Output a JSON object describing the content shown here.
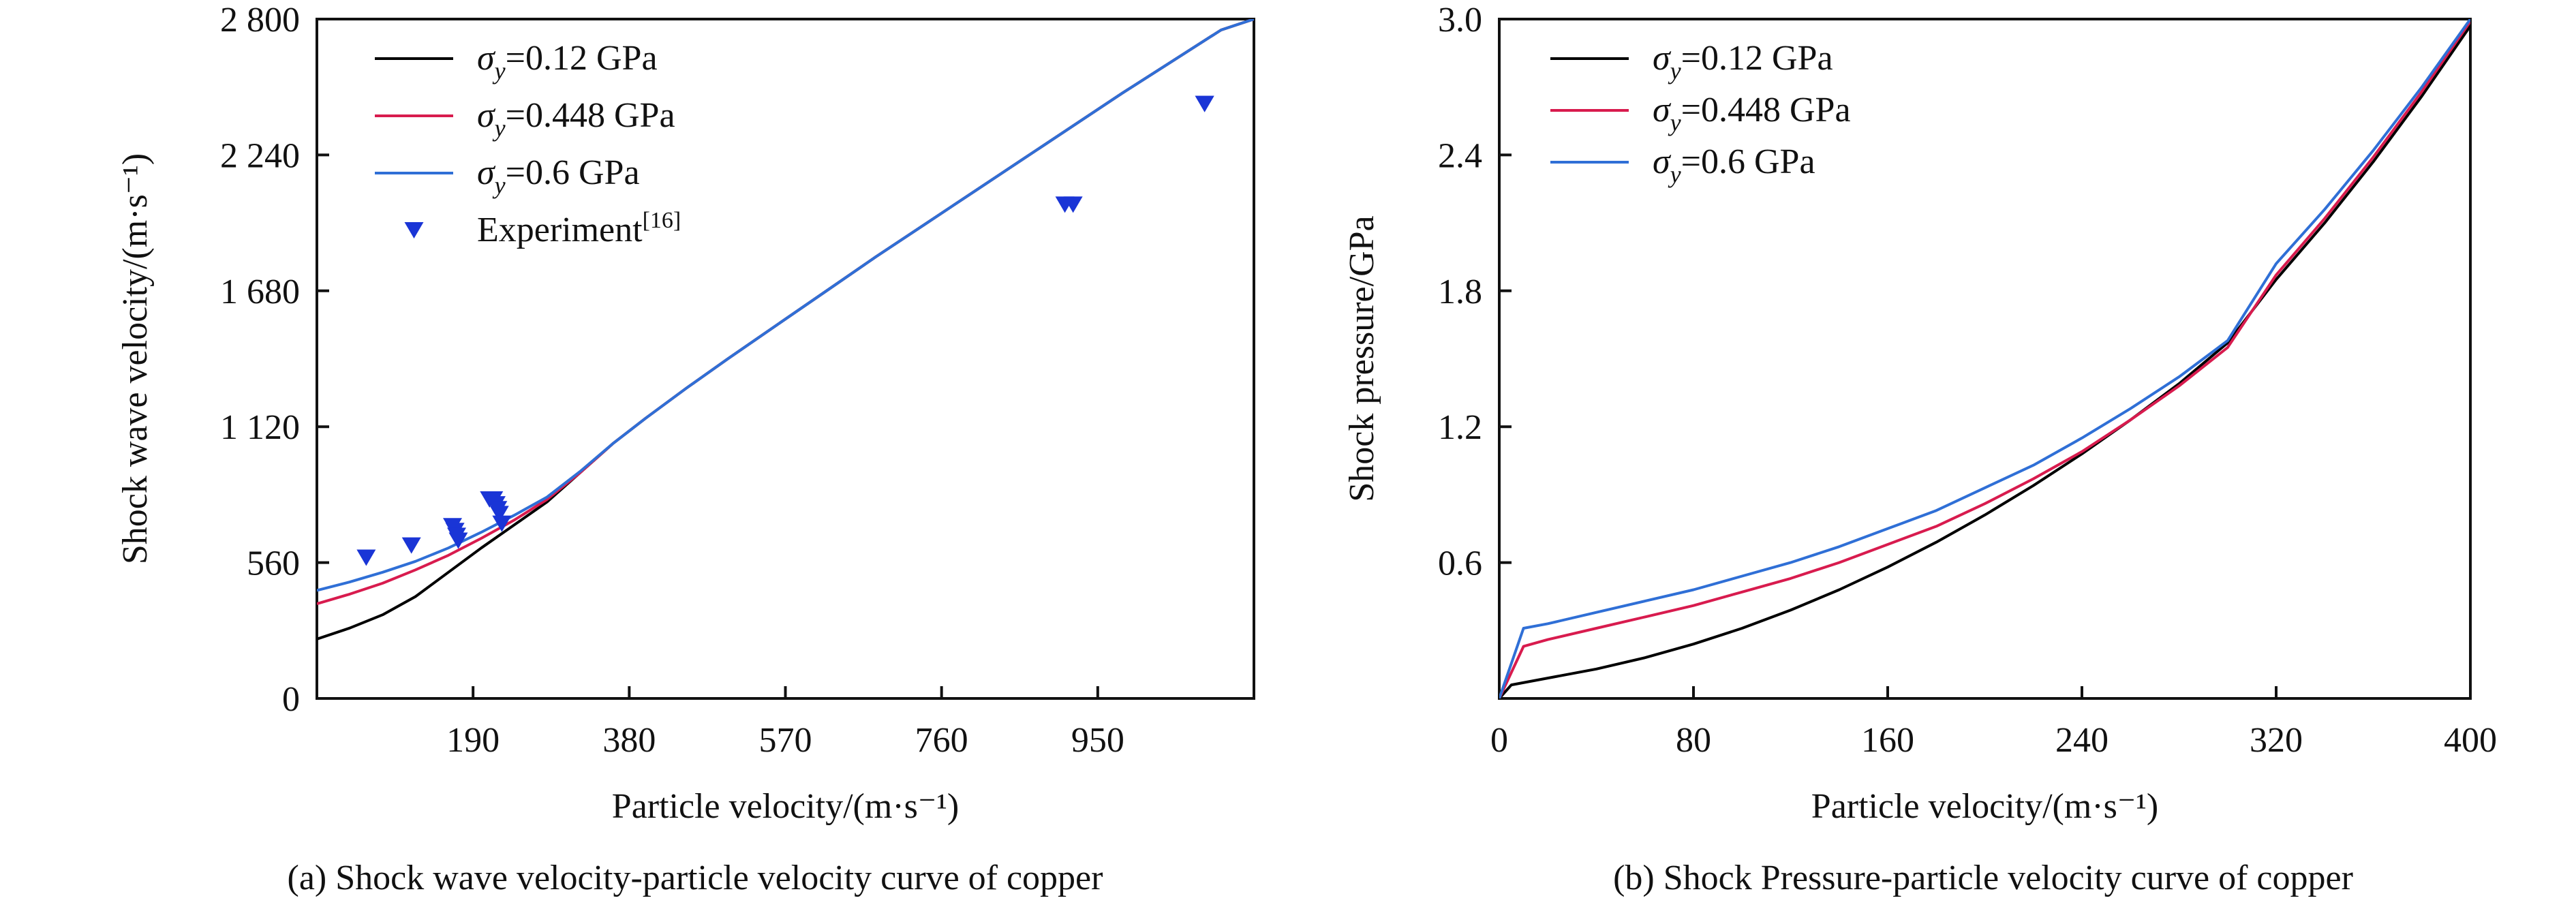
{
  "chart_data": [
    {
      "type": "line",
      "caption": "(a) Shock wave velocity-particle velocity curve of copper",
      "xlabel": "Particle velocity/(m·s⁻¹)",
      "ylabel": "Shock wave velocity/(m·s⁻¹)",
      "xlim": [
        0,
        1140
      ],
      "ylim": [
        0,
        2800
      ],
      "xticks": [
        190,
        380,
        570,
        760,
        950
      ],
      "xtick_labels": [
        "190",
        "380",
        "570",
        "760",
        "950"
      ],
      "yticks": [
        0,
        560,
        1120,
        1680,
        2240,
        2800
      ],
      "ytick_labels": [
        "0",
        "560",
        "1 120",
        "1 680",
        "2 240",
        "2 800"
      ],
      "legend_position": "top-left",
      "series": [
        {
          "name": "σy=0.12 GPa",
          "legend_symbol": "σ",
          "legend_subscript": "y",
          "legend_value": "=0.12 GPa",
          "color": "#000000",
          "kind": "line",
          "x": [
            0,
            40,
            80,
            120,
            160,
            200,
            240,
            280,
            320,
            360,
            400,
            450,
            500,
            560,
            620,
            680,
            740,
            800,
            860,
            920,
            980,
            1040,
            1100,
            1140
          ],
          "y": [
            245,
            290,
            345,
            420,
            520,
            620,
            715,
            810,
            930,
            1050,
            1155,
            1280,
            1400,
            1540,
            1680,
            1820,
            1955,
            2090,
            2225,
            2360,
            2495,
            2625,
            2755,
            2800
          ]
        },
        {
          "name": "σy=0.448 GPa",
          "legend_symbol": "σ",
          "legend_subscript": "y",
          "legend_value": "=0.448 GPa",
          "color": "#d81b4e",
          "kind": "line",
          "x": [
            0,
            40,
            80,
            120,
            160,
            200,
            240,
            280,
            320,
            360,
            400,
            450,
            500,
            560,
            620,
            680,
            740,
            800,
            860,
            920,
            980,
            1040,
            1100,
            1140
          ],
          "y": [
            390,
            430,
            475,
            530,
            590,
            660,
            735,
            820,
            930,
            1050,
            1155,
            1280,
            1400,
            1540,
            1680,
            1820,
            1955,
            2090,
            2225,
            2360,
            2495,
            2625,
            2755,
            2800
          ]
        },
        {
          "name": "σy=0.6 GPa",
          "legend_symbol": "σ",
          "legend_subscript": "y",
          "legend_value": "=0.6 GPa",
          "color": "#2f6fd6",
          "kind": "line",
          "x": [
            0,
            40,
            80,
            120,
            160,
            200,
            240,
            280,
            320,
            360,
            400,
            450,
            500,
            560,
            620,
            680,
            740,
            800,
            860,
            920,
            980,
            1040,
            1100,
            1140
          ],
          "y": [
            445,
            480,
            520,
            565,
            620,
            685,
            755,
            830,
            935,
            1050,
            1155,
            1280,
            1400,
            1540,
            1680,
            1820,
            1955,
            2090,
            2225,
            2360,
            2495,
            2625,
            2755,
            2800
          ]
        },
        {
          "name": "Experiment[16]",
          "legend_label": "Experiment",
          "legend_superscript": "[16]",
          "color": "#1a35d6",
          "kind": "scatter",
          "x": [
            60,
            115,
            165,
            168,
            170,
            172,
            215,
            218,
            220,
            222,
            225,
            920,
            1080,
            1080,
            910,
            210
          ],
          "y": [
            580,
            630,
            710,
            690,
            670,
            650,
            820,
            800,
            780,
            760,
            720,
            2035,
            2450,
            2450,
            2035,
            820
          ]
        }
      ]
    },
    {
      "type": "line",
      "caption": "(b) Shock Pressure-particle velocity curve of copper",
      "xlabel": "Particle velocity/(m·s⁻¹)",
      "ylabel": "Shock pressure/GPa",
      "xlim": [
        0,
        400
      ],
      "ylim": [
        0,
        3.0
      ],
      "xticks": [
        0,
        80,
        160,
        240,
        320,
        400
      ],
      "xtick_labels": [
        "0",
        "80",
        "160",
        "240",
        "320",
        "400"
      ],
      "yticks": [
        0.6,
        1.2,
        1.8,
        2.4,
        3.0
      ],
      "ytick_labels": [
        "0.6",
        "1.2",
        "1.8",
        "2.4",
        "3.0"
      ],
      "legend_position": "top-left",
      "series": [
        {
          "name": "σy=0.12 GPa",
          "legend_symbol": "σ",
          "legend_subscript": "y",
          "legend_value": "=0.12 GPa",
          "color": "#000000",
          "kind": "line",
          "x": [
            0,
            5,
            20,
            40,
            60,
            80,
            100,
            120,
            140,
            160,
            180,
            200,
            220,
            240,
            260,
            280,
            300,
            320,
            340,
            360,
            380,
            400
          ],
          "y": [
            0,
            0.06,
            0.09,
            0.13,
            0.18,
            0.24,
            0.31,
            0.39,
            0.48,
            0.58,
            0.69,
            0.81,
            0.94,
            1.08,
            1.23,
            1.39,
            1.57,
            1.85,
            2.1,
            2.37,
            2.66,
            2.97
          ]
        },
        {
          "name": "σy=0.448 GPa",
          "legend_symbol": "σ",
          "legend_subscript": "y",
          "legend_value": "=0.448 GPa",
          "color": "#d81b4e",
          "kind": "line",
          "x": [
            0,
            10,
            20,
            40,
            60,
            80,
            100,
            120,
            140,
            160,
            180,
            200,
            220,
            240,
            260,
            280,
            300,
            320,
            340,
            360,
            380,
            400
          ],
          "y": [
            0,
            0.23,
            0.26,
            0.31,
            0.36,
            0.41,
            0.47,
            0.53,
            0.6,
            0.68,
            0.76,
            0.86,
            0.97,
            1.09,
            1.23,
            1.38,
            1.55,
            1.87,
            2.12,
            2.39,
            2.68,
            2.99
          ]
        },
        {
          "name": "σy=0.6 GPa",
          "legend_symbol": "σ",
          "legend_subscript": "y",
          "legend_value": "=0.6 GPa",
          "color": "#2f6fd6",
          "kind": "line",
          "x": [
            0,
            10,
            20,
            40,
            60,
            80,
            100,
            120,
            140,
            160,
            180,
            200,
            220,
            240,
            260,
            280,
            300,
            320,
            340,
            360,
            380,
            400
          ],
          "y": [
            0,
            0.31,
            0.33,
            0.38,
            0.43,
            0.48,
            0.54,
            0.6,
            0.67,
            0.75,
            0.83,
            0.93,
            1.03,
            1.15,
            1.28,
            1.42,
            1.58,
            1.92,
            2.16,
            2.42,
            2.7,
            3.0
          ]
        }
      ]
    }
  ]
}
